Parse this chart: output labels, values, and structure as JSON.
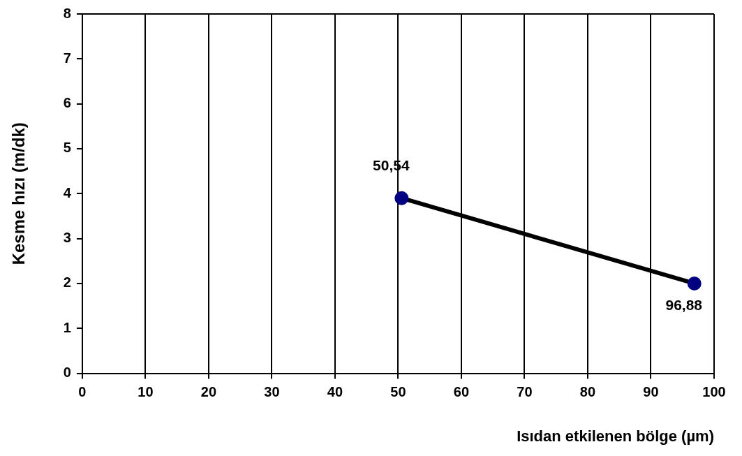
{
  "chart_data": {
    "type": "line",
    "xlabel": "Isıdan etkilenen bölge (µm)",
    "ylabel": "Kesme hızı (m/dk)",
    "x": [
      50.54,
      96.88
    ],
    "series": [
      {
        "color": "#000000",
        "values": [
          3.9,
          2
        ]
      }
    ],
    "annotations": [
      {
        "text": "50,54",
        "x": 50.54,
        "y": 3.9
      },
      {
        "text": "96,88",
        "x": 96.88,
        "y": 2
      }
    ],
    "xlim": [
      0,
      100
    ],
    "xticks": [
      0,
      10,
      20,
      30,
      40,
      50,
      60,
      70,
      80,
      90,
      100
    ],
    "ylim": [
      0,
      8
    ],
    "yticks": [
      0,
      1,
      2,
      3,
      4,
      5,
      6,
      7,
      8
    ],
    "grid": "x",
    "legend": false,
    "marker": "circle",
    "line_style": "solid"
  }
}
